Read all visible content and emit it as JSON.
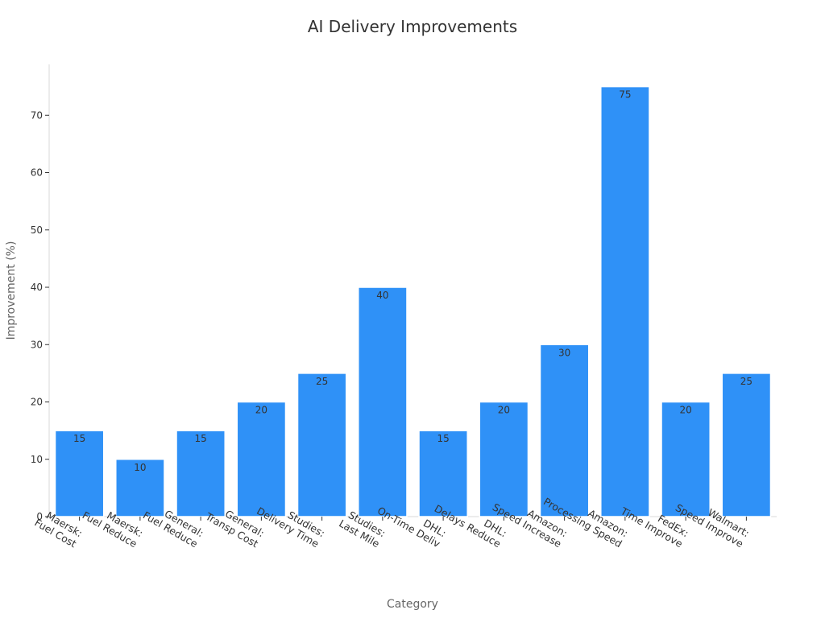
{
  "chart_data": {
    "type": "bar",
    "title": "AI Delivery Improvements",
    "xlabel": "Category",
    "ylabel": "Improvement (%)",
    "ylim": [
      0,
      78
    ],
    "yticks": [
      0,
      10,
      20,
      30,
      40,
      50,
      60,
      70
    ],
    "grid": false,
    "bar_color": "#2f91f7",
    "categories": [
      [
        "Maersk:",
        "Fuel Cost"
      ],
      [
        "Maersk:",
        "Fuel Reduce"
      ],
      [
        "General:",
        "Fuel Reduce"
      ],
      [
        "General:",
        "Transp Cost"
      ],
      [
        "Studies:",
        "Delivery Time"
      ],
      [
        "Studies:",
        "Last Mile"
      ],
      [
        "DHL:",
        "On-Time Deliv"
      ],
      [
        "DHL:",
        "Delays Reduce"
      ],
      [
        "Amazon:",
        "Speed Increase"
      ],
      [
        "Amazon:",
        "Processing Speed"
      ],
      [
        "FedEx:",
        "Time Improve"
      ],
      [
        "Walmart:",
        "Speed Improve"
      ]
    ],
    "values": [
      15,
      10,
      15,
      20,
      25,
      40,
      15,
      20,
      30,
      75,
      20,
      25
    ]
  }
}
